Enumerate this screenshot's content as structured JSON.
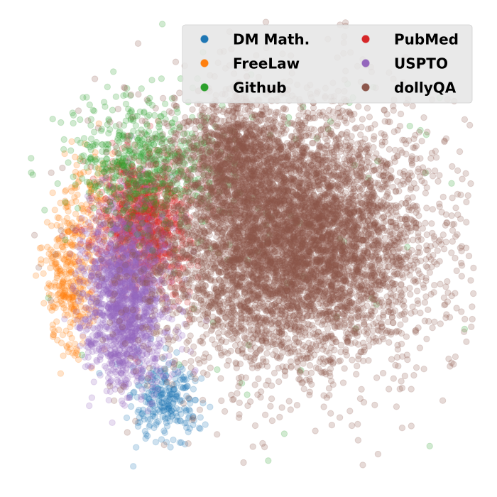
{
  "chart_data": {
    "type": "scatter",
    "title": "",
    "xlabel": "",
    "ylabel": "",
    "axes_visible": false,
    "grid": false,
    "legend_position": "top-right",
    "legend_columns": 2,
    "xlim": [
      -6,
      6
    ],
    "ylim": [
      -6,
      6
    ],
    "point_alpha": 0.22,
    "series": [
      {
        "name": "DM Math.",
        "color": "#1f77b4",
        "clusters": [
          {
            "center": [
              -2.3,
              -4.1
            ],
            "spread": [
              0.45,
              0.55
            ],
            "count": 260
          }
        ]
      },
      {
        "name": "FreeLaw",
        "color": "#ff7f0e",
        "clusters": [
          {
            "center": [
              -4.9,
              -0.8
            ],
            "spread": [
              0.35,
              1.0
            ],
            "count": 340
          },
          {
            "center": [
              -4.4,
              1.4
            ],
            "spread": [
              0.4,
              0.6
            ],
            "count": 90
          }
        ]
      },
      {
        "name": "Github",
        "color": "#2ca02c",
        "clusters": [
          {
            "center": [
              -2.8,
              2.3
            ],
            "spread": [
              1.0,
              0.8
            ],
            "count": 600
          },
          {
            "center": [
              0.0,
              1.5
            ],
            "spread": [
              3.0,
              2.6
            ],
            "count": 110
          }
        ]
      },
      {
        "name": "PubMed",
        "color": "#d62728",
        "clusters": [
          {
            "center": [
              -2.9,
              0.7
            ],
            "spread": [
              0.6,
              0.9
            ],
            "count": 1100
          }
        ]
      },
      {
        "name": "USPTO",
        "color": "#9467bd",
        "clusters": [
          {
            "center": [
              -3.4,
              -1.2
            ],
            "spread": [
              0.55,
              1.1
            ],
            "count": 1500
          },
          {
            "center": [
              -3.2,
              -2.8
            ],
            "spread": [
              0.6,
              0.5
            ],
            "count": 140
          }
        ]
      },
      {
        "name": "dollyQA",
        "color": "#8c564b",
        "clusters": [
          {
            "center": [
              1.0,
              0.3
            ],
            "spread": [
              1.7,
              1.55
            ],
            "count": 6400
          },
          {
            "center": [
              -0.4,
              2.5
            ],
            "spread": [
              0.7,
              0.8
            ],
            "count": 900
          },
          {
            "center": [
              1.0,
              0.0
            ],
            "spread": [
              2.6,
              2.3
            ],
            "count": 800
          }
        ]
      }
    ]
  }
}
